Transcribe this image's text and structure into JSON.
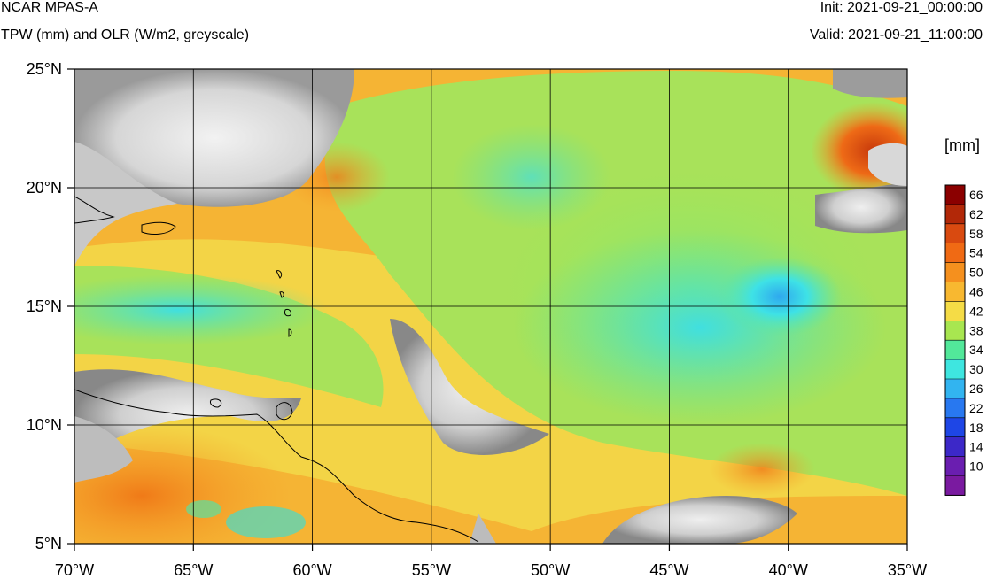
{
  "header": {
    "model": "NCAR MPAS-A",
    "fields": "TPW (mm) and OLR (W/m2, greyscale)",
    "init": "Init: 2021-09-21_00:00:00",
    "valid": "Valid: 2021-09-21_11:00:00"
  },
  "map": {
    "lon_range": [
      -70,
      -35
    ],
    "lat_range": [
      5,
      25
    ],
    "lon_ticks": [
      {
        "value": -70,
        "label": "70°W"
      },
      {
        "value": -65,
        "label": "65°W"
      },
      {
        "value": -60,
        "label": "60°W"
      },
      {
        "value": -55,
        "label": "55°W"
      },
      {
        "value": -50,
        "label": "50°W"
      },
      {
        "value": -45,
        "label": "45°W"
      },
      {
        "value": -40,
        "label": "40°W"
      },
      {
        "value": -35,
        "label": "35°W"
      }
    ],
    "lat_ticks": [
      {
        "value": 25,
        "label": "25°N"
      },
      {
        "value": 20,
        "label": "20°N"
      },
      {
        "value": 15,
        "label": "15°N"
      },
      {
        "value": 10,
        "label": "10°N"
      },
      {
        "value": 5,
        "label": "5°N"
      }
    ],
    "grid": true
  },
  "colorbar": {
    "units": "[mm]",
    "levels": [
      {
        "label": "66",
        "color": "#8b0000"
      },
      {
        "label": "62",
        "color": "#b22808"
      },
      {
        "label": "58",
        "color": "#d94a10"
      },
      {
        "label": "54",
        "color": "#f06a14"
      },
      {
        "label": "50",
        "color": "#f5901e"
      },
      {
        "label": "46",
        "color": "#f8b830"
      },
      {
        "label": "42",
        "color": "#f5dc46"
      },
      {
        "label": "38",
        "color": "#a8e650"
      },
      {
        "label": "34",
        "color": "#52e89a"
      },
      {
        "label": "30",
        "color": "#3ee6e0"
      },
      {
        "label": "26",
        "color": "#32b4f0"
      },
      {
        "label": "22",
        "color": "#2878f0"
      },
      {
        "label": "18",
        "color": "#1e46e6"
      },
      {
        "label": "14",
        "color": "#3c28c8"
      },
      {
        "label": "10",
        "color": "#6a1eb0"
      },
      {
        "label": "",
        "color": "#7a1aa0"
      }
    ]
  },
  "colors": {
    "olr_cloud": "#e8e8e8",
    "olr_cloud_dark": "#8a8a8a",
    "coastline": "#000000"
  }
}
